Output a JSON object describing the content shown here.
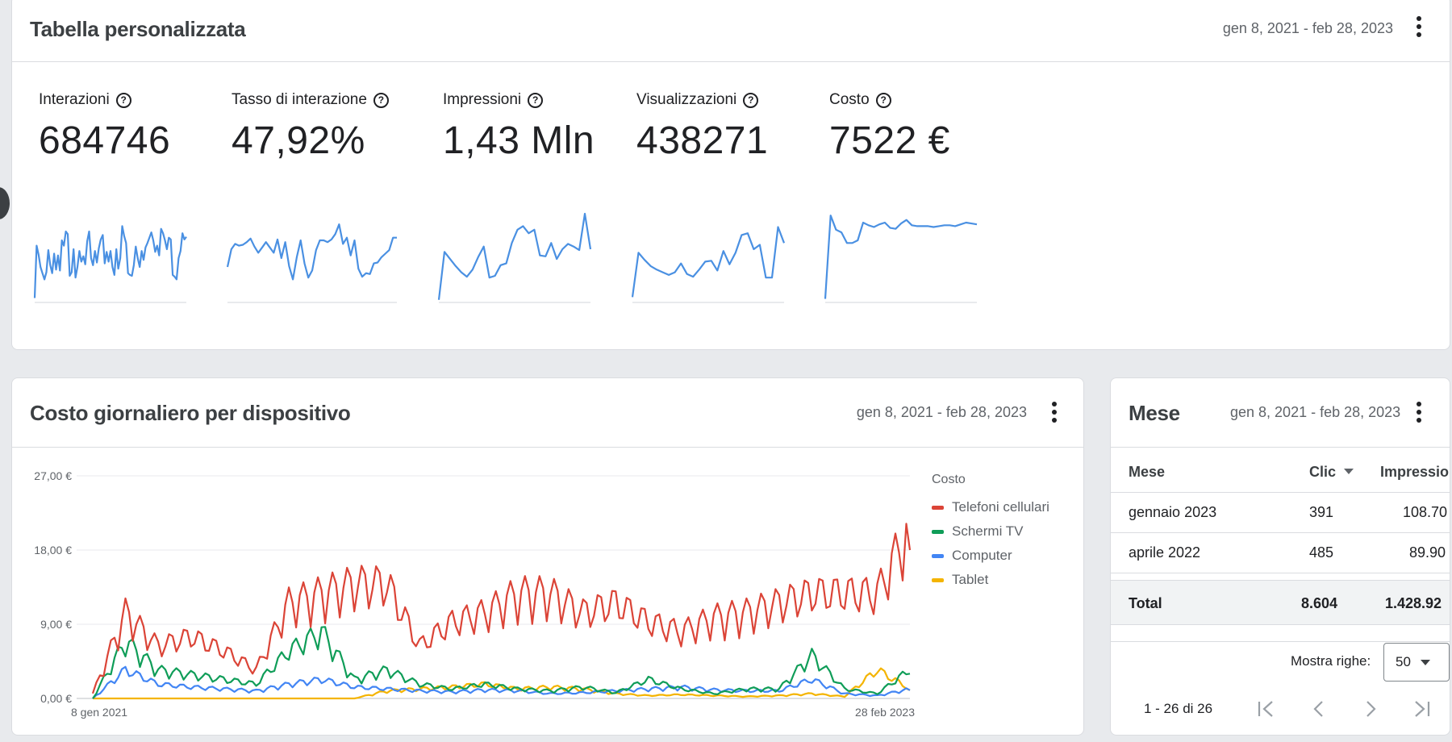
{
  "custom_table": {
    "title": "Tabella personalizzata",
    "date_range": "gen 8, 2021 - feb 28, 2023",
    "metrics": [
      {
        "label": "Interazioni",
        "value": "684746",
        "trend": [
          5,
          64,
          54,
          40,
          33,
          26,
          34,
          59,
          42,
          33,
          55,
          37,
          53,
          36,
          70,
          64,
          80,
          77,
          30,
          34,
          60,
          28,
          40,
          58,
          46,
          52,
          43,
          69,
          80,
          50,
          42,
          58,
          45,
          61,
          71,
          76,
          44,
          57,
          46,
          58,
          40,
          31,
          60,
          38,
          50,
          86,
          75,
          67,
          33,
          31,
          30,
          42,
          63,
          50,
          40,
          58,
          48,
          62,
          67,
          73,
          79,
          70,
          57,
          64,
          53,
          83,
          78,
          70,
          60,
          73,
          71,
          31,
          29,
          26,
          50,
          58,
          78,
          71,
          74
        ]
      },
      {
        "label": "Tasso di interazione",
        "value": "47,92%",
        "trend": [
          40,
          60,
          66,
          64,
          65,
          68,
          72,
          63,
          56,
          62,
          68,
          62,
          56,
          71,
          50,
          68,
          41,
          26,
          51,
          70,
          44,
          28,
          36,
          59,
          70,
          70,
          68,
          71,
          77,
          88,
          66,
          73,
          53,
          70,
          38,
          29,
          33,
          32,
          44,
          45,
          51,
          55,
          59,
          73,
          73
        ]
      },
      {
        "label": "Impressioni",
        "value": "1,43 Mln",
        "trend": [
          3,
          57,
          49,
          41,
          34,
          29,
          37,
          51,
          63,
          28,
          30,
          42,
          44,
          67,
          82,
          86,
          78,
          82,
          53,
          52,
          67,
          49,
          60,
          66,
          63,
          59,
          100,
          60
        ]
      },
      {
        "label": "Visualizzazioni",
        "value": "438271",
        "trend": [
          6,
          56,
          48,
          41,
          37,
          34,
          31,
          34,
          44,
          32,
          29,
          37,
          46,
          47,
          36,
          58,
          43,
          56,
          76,
          78,
          60,
          65,
          28,
          28,
          85,
          67
        ]
      },
      {
        "label": "Costo",
        "value": "7522 €",
        "trend": [
          4,
          98,
          82,
          79,
          67,
          67,
          70,
          90,
          87,
          85,
          88,
          90,
          84,
          83,
          89,
          93,
          87,
          86,
          86,
          86,
          85,
          86,
          87,
          87,
          86,
          88,
          90,
          89,
          88
        ]
      }
    ]
  },
  "device_cost": {
    "title": "Costo giornaliero per dispositivo",
    "date_range": "gen 8, 2021 - feb 28, 2023",
    "legend": {
      "title": "Costo",
      "items": [
        {
          "label": "Telefoni cellulari",
          "color": "#db4437"
        },
        {
          "label": "Schermi TV",
          "color": "#0f9d58"
        },
        {
          "label": "Computer",
          "color": "#4285f4"
        },
        {
          "label": "Tablet",
          "color": "#f4b400"
        }
      ]
    }
  },
  "chart_data": {
    "type": "line",
    "y_ticks": [
      "27,00 €",
      "18,00 €",
      "9,00 €",
      "0,00 €"
    ],
    "ylim": [
      0,
      27
    ],
    "x_ticks": [
      "8 gen 2021",
      "28 feb 2023"
    ],
    "x": [
      "2021-01",
      "2021-02",
      "2021-03",
      "2021-04",
      "2021-05",
      "2021-06",
      "2021-07",
      "2021-08",
      "2021-09",
      "2021-10",
      "2021-11",
      "2021-12",
      "2022-01",
      "2022-02",
      "2022-03",
      "2022-04",
      "2022-05",
      "2022-06",
      "2022-07",
      "2022-08",
      "2022-09",
      "2022-10",
      "2022-11",
      "2022-12",
      "2023-01",
      "2023-02"
    ],
    "series": [
      {
        "name": "Telefoni cellulari",
        "values": [
          0.5,
          9,
          5.5,
          6.5,
          5,
          3,
          10,
          11,
          12,
          12,
          5.5,
          8,
          9,
          11,
          11,
          9,
          10,
          8,
          7,
          8.5,
          9,
          10,
          11,
          11,
          11,
          18
        ]
      },
      {
        "name": "Schermi TV",
        "values": [
          0,
          6,
          3,
          2.5,
          2,
          1.5,
          5,
          7,
          2,
          3,
          1.5,
          1,
          1.5,
          1,
          0.8,
          1.2,
          0.6,
          2,
          1,
          0.5,
          1,
          1,
          4.5,
          1,
          0.5,
          3
        ]
      },
      {
        "name": "Computer",
        "values": [
          0,
          3,
          1.5,
          1.2,
          1,
          0.8,
          1.5,
          2,
          1.2,
          1,
          0.8,
          0.7,
          0.9,
          0.8,
          0.5,
          0.6,
          0.8,
          1,
          1.2,
          0.9,
          0.8,
          0.8,
          2,
          0.5,
          0.3,
          1
        ]
      },
      {
        "name": "Tablet",
        "values": [
          0,
          0,
          0,
          0,
          0,
          0,
          0,
          0,
          0,
          0.8,
          1,
          1.2,
          1.5,
          1,
          1.2,
          1,
          0.5,
          0.3,
          0.4,
          0.3,
          0.2,
          0.3,
          0.5,
          0.2,
          3,
          1
        ]
      }
    ]
  },
  "month_table": {
    "title": "Mese",
    "date_range": "gen 8, 2021 - feb 28, 2023",
    "columns": [
      "Mese",
      "Clic",
      "Impressio"
    ],
    "rows": [
      {
        "month": "gennaio 2023",
        "clicks": "391",
        "impressions": "108.70"
      },
      {
        "month": "aprile 2022",
        "clicks": "485",
        "impressions": "89.90"
      }
    ],
    "total": {
      "label": "Total",
      "clicks": "8.604",
      "impressions": "1.428.92"
    },
    "rows_label": "Mostra righe:",
    "rows_value": "50",
    "pager_text": "1 - 26 di 26"
  }
}
